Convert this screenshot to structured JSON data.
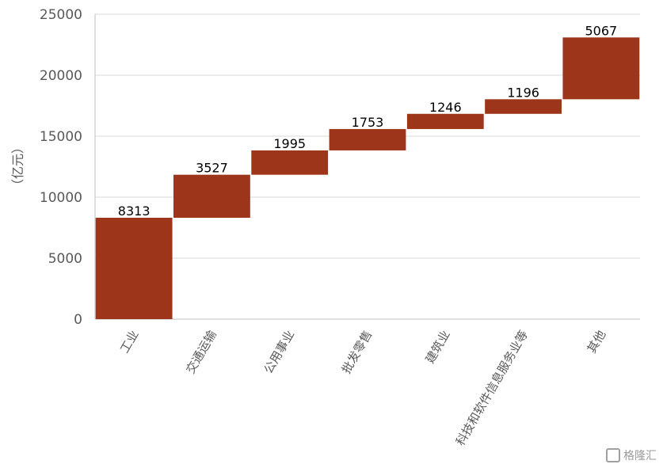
{
  "chart_data": {
    "type": "bar",
    "subtype": "waterfall",
    "title": "",
    "xlabel": "",
    "ylabel": "（亿元）",
    "ylim": [
      0,
      25000
    ],
    "yticks": [
      0,
      5000,
      10000,
      15000,
      20000,
      25000
    ],
    "grid": true,
    "legend": "none",
    "bar_color": "#9c3519",
    "categories": [
      "工业",
      "交通运输",
      "公用事业",
      "批发零售",
      "建筑业",
      "科技和软件信息服务业等",
      "其他"
    ],
    "values": [
      8313,
      3527,
      1995,
      1753,
      1246,
      1196,
      5067
    ],
    "labels": [
      "8313",
      "3527",
      "1995",
      "1753",
      "1246",
      "1196",
      "5067"
    ]
  },
  "watermark": {
    "text": "格隆汇",
    "icon": "gelonghui-logo-icon"
  }
}
